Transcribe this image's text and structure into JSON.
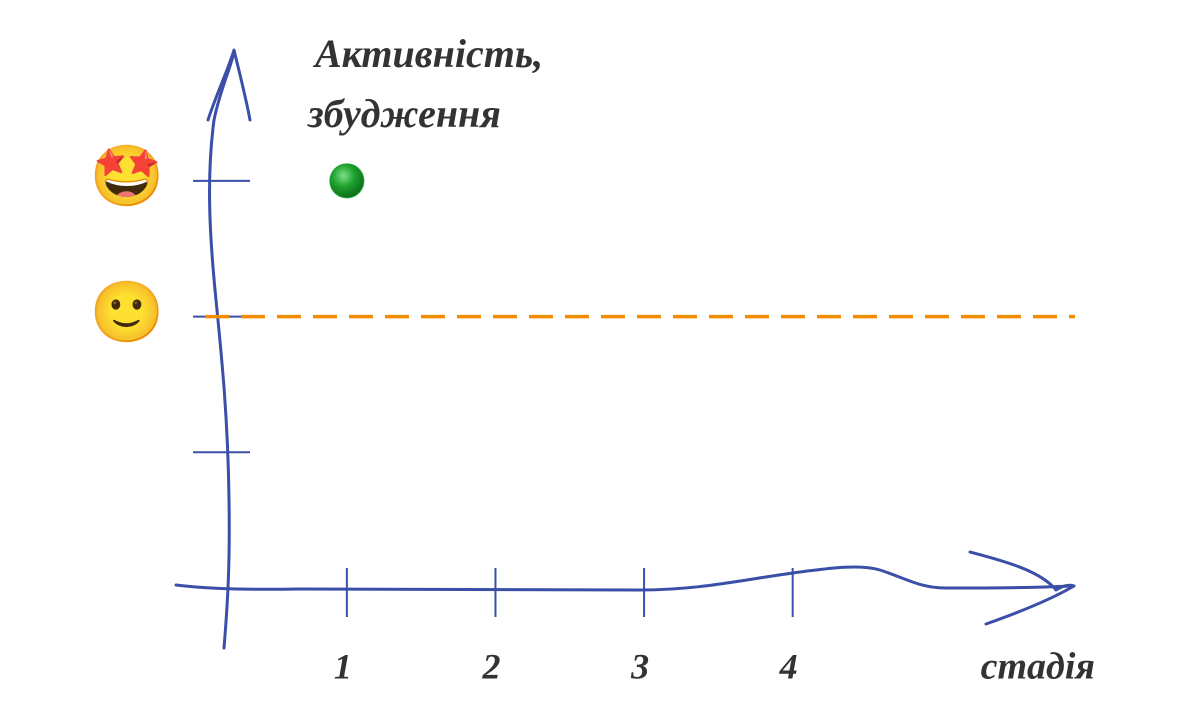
{
  "chart_data": {
    "type": "scatter",
    "y_label": [
      "Активність,",
      "збудження"
    ],
    "x_label": "стадія",
    "xlim": [
      0.2,
      5.9
    ],
    "xticks": [
      1,
      2,
      3,
      4
    ],
    "ylim": [
      0,
      3.5
    ],
    "yticks": [
      {
        "value": 1,
        "label": null
      },
      {
        "value": 2,
        "label": "🙂"
      },
      {
        "value": 3,
        "label": "🤩"
      }
    ],
    "reference_line": {
      "value": 2,
      "color": "#f28c00",
      "style": "dashed"
    },
    "series": [
      {
        "color": "#1ea12e",
        "x": [
          1
        ],
        "values": [
          3
        ]
      }
    ]
  }
}
